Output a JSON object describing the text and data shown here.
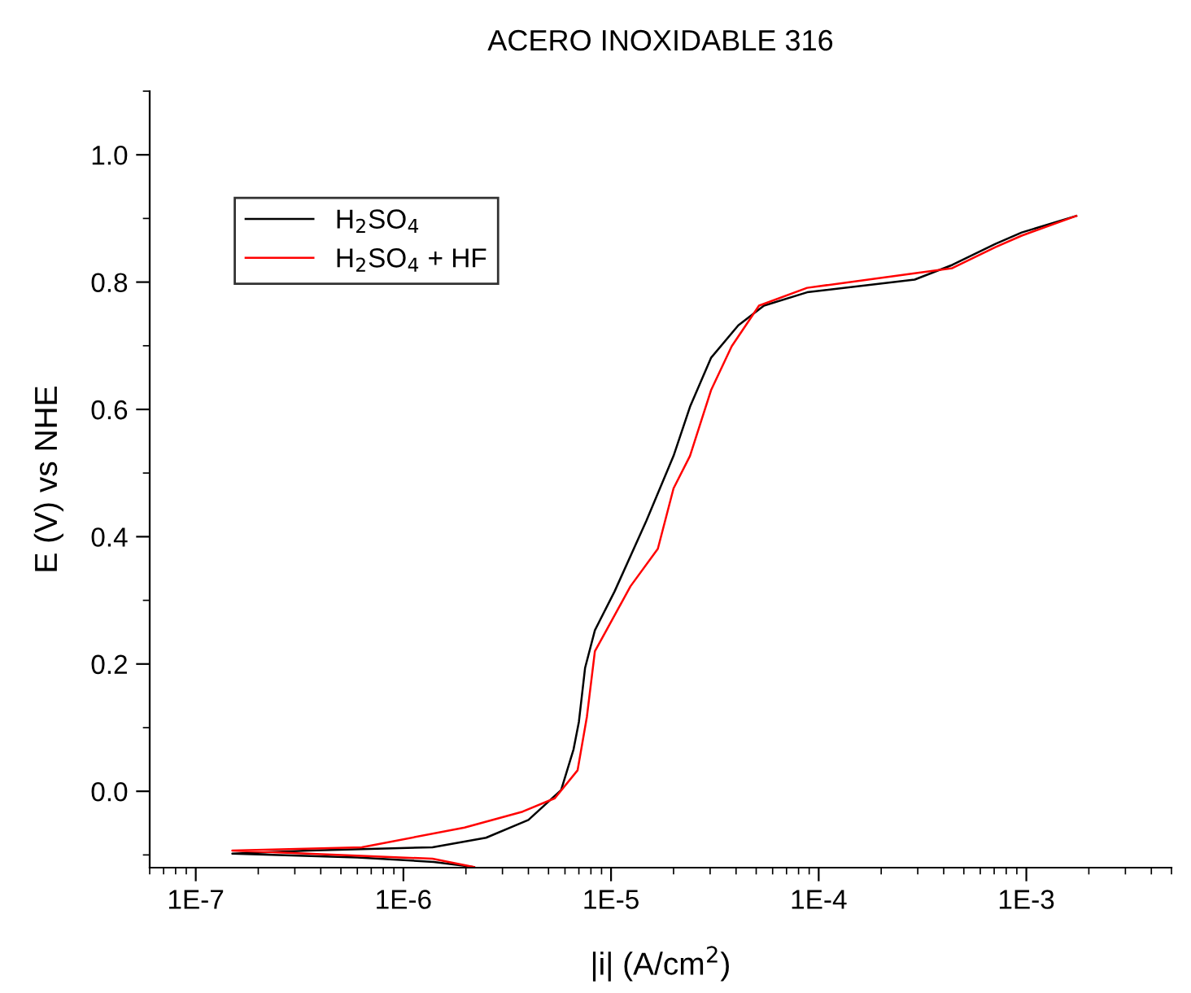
{
  "chart_data": {
    "type": "line",
    "title": "ACERO INOXIDABLE 316",
    "xlabel": "|i| (A/cm$^{2}$)",
    "ylabel": "E (V) vs NHE",
    "log": "x",
    "grid": false,
    "legend": "top left",
    "marker": "none",
    "line_style": "solid",
    "xlim": [
      6e-08,
      0.005
    ],
    "ylim": [
      -0.12,
      1.1
    ],
    "xticks": [
      {
        "value": 1e-07,
        "label": "1E-7"
      },
      {
        "value": 1e-06,
        "label": "1E-6"
      },
      {
        "value": 1e-05,
        "label": "1E-5"
      },
      {
        "value": 0.0001,
        "label": "1E-4"
      },
      {
        "value": 0.001,
        "label": "1E-3"
      }
    ],
    "yticks": [
      {
        "value": 0,
        "label": "0.0"
      },
      {
        "value": 0.2,
        "label": "0.2"
      },
      {
        "value": 0.4,
        "label": "0.4"
      },
      {
        "value": 0.6,
        "label": "0.6"
      },
      {
        "value": 0.8,
        "label": "0.8"
      },
      {
        "value": 1.0,
        "label": "1.0"
      }
    ],
    "series": [
      {
        "name": "H$_{2}$SO$_{4}$",
        "color": "#000000",
        "x": [
          2.19e-06,
          1.4e-06,
          6e-07,
          1.5e-07,
          3.5e-07,
          1.38e-06,
          2.5e-06,
          4e-06,
          5.75e-06,
          6.6e-06,
          7e-06,
          7.5e-06,
          8.36e-06,
          1.04e-05,
          1.48e-05,
          2e-05,
          2.4e-05,
          3.03e-05,
          4.1e-05,
          5.45e-05,
          8.8e-05,
          0.00029,
          0.00044,
          0.00071,
          0.00095,
          0.00174
        ],
        "values": [
          -0.119,
          -0.111,
          -0.104,
          -0.098,
          -0.093,
          -0.088,
          -0.073,
          -0.045,
          0.002,
          0.066,
          0.109,
          0.194,
          0.253,
          0.314,
          0.425,
          0.527,
          0.604,
          0.681,
          0.732,
          0.763,
          0.784,
          0.804,
          0.827,
          0.86,
          0.878,
          0.904
        ]
      },
      {
        "name": "H$_{2}$SO$_{4}$ + HF",
        "color": "#ff0000",
        "x": [
          2.19e-06,
          1.38e-06,
          5.96e-07,
          1.5e-07,
          6.3e-07,
          1.97e-06,
          3.75e-06,
          5.36e-06,
          6.9e-06,
          7.65e-06,
          8.36e-06,
          9.5e-06,
          1.24e-05,
          1.68e-05,
          2e-05,
          2.4e-05,
          3.03e-05,
          3.81e-05,
          5.16e-05,
          8.8e-05,
          0.00029,
          0.00044,
          0.00071,
          0.00095,
          0.00174
        ],
        "values": [
          -0.119,
          -0.106,
          -0.101,
          -0.093,
          -0.088,
          -0.057,
          -0.032,
          -0.011,
          0.033,
          0.117,
          0.22,
          0.253,
          0.322,
          0.381,
          0.476,
          0.527,
          0.63,
          0.699,
          0.763,
          0.791,
          0.814,
          0.822,
          0.855,
          0.873,
          0.904
        ]
      }
    ]
  }
}
